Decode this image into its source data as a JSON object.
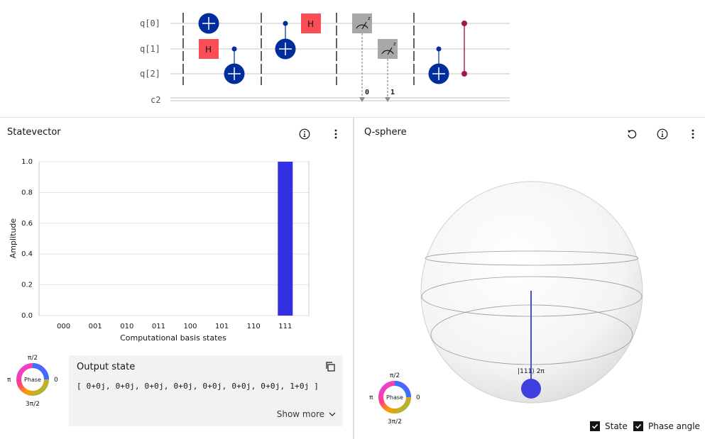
{
  "circuit": {
    "qubits": [
      "q[0]",
      "q[1]",
      "q[2]"
    ],
    "classical": "c2",
    "gate_label_h": "H",
    "measure_bits": [
      "0",
      "1"
    ],
    "colors": {
      "cnot": "#002d9c",
      "h": "#fa4d56",
      "measure": "#a8a8a8",
      "cz": "#9f1853"
    }
  },
  "statevector": {
    "title": "Statevector",
    "info_icon": "info-icon",
    "menu_icon": "overflow-menu-icon"
  },
  "chart_data": {
    "type": "bar",
    "categories": [
      "000",
      "001",
      "010",
      "011",
      "100",
      "101",
      "110",
      "111"
    ],
    "values": [
      0,
      0,
      0,
      0,
      0,
      0,
      0,
      1.0
    ],
    "yticks": [
      "0.0",
      "0.2",
      "0.4",
      "0.6",
      "0.8",
      "1.0"
    ],
    "xlabel": "Computational basis states",
    "ylabel": "Amplitude",
    "ylim": [
      0,
      1.0
    ],
    "bar_color": "#3131e3"
  },
  "phase_wheel": {
    "center_label": "Phase",
    "top": "π/2",
    "left": "π",
    "right": "0",
    "bottom": "3π/2"
  },
  "output_state": {
    "title": "Output state",
    "value": "[ 0+0j, 0+0j, 0+0j, 0+0j, 0+0j, 0+0j, 0+0j, 1+0j ]",
    "show_more": "Show more"
  },
  "qsphere": {
    "title": "Q-sphere",
    "state_label": "|111⟩ 2π",
    "state_color": "#3f3fe0"
  },
  "options": {
    "state_label": "State",
    "phase_angle_label": "Phase angle",
    "state_checked": true,
    "phase_angle_checked": true
  }
}
